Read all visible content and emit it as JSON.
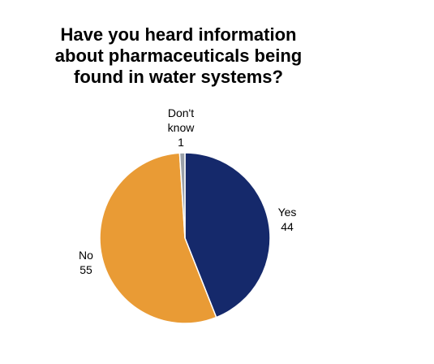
{
  "chart_data": {
    "type": "pie",
    "title_lines": [
      "Have you heard information",
      "about pharmaceuticals being",
      "found in water systems?"
    ],
    "slices": [
      {
        "label_lines": [
          "Yes"
        ],
        "value": 44,
        "value_text": "44",
        "color": "#15296b"
      },
      {
        "label_lines": [
          "No"
        ],
        "value": 55,
        "value_text": "55",
        "color": "#e99b35"
      },
      {
        "label_lines": [
          "Don't",
          "know"
        ],
        "value": 1,
        "value_text": "1",
        "color": "#9aa0a8"
      }
    ]
  }
}
